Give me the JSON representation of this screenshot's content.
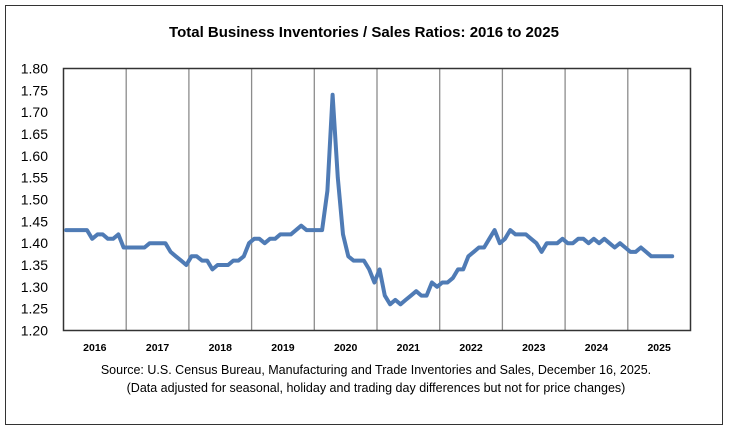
{
  "chart_data": {
    "type": "line",
    "title": "Total Business Inventories / Sales Ratios: 2016 to 2025",
    "xlabel": "",
    "ylabel": "",
    "ylim": [
      1.2,
      1.8
    ],
    "yticks": [
      "1.20",
      "1.25",
      "1.30",
      "1.35",
      "1.40",
      "1.45",
      "1.50",
      "1.55",
      "1.60",
      "1.65",
      "1.70",
      "1.75",
      "1.80"
    ],
    "xtick_labels": [
      "2016",
      "2017",
      "2018",
      "2019",
      "2020",
      "2021",
      "2022",
      "2023",
      "2024",
      "2025"
    ],
    "frequency": "monthly",
    "start": "2016-01",
    "grid": "vertical year separators",
    "line_color": "#4f7bb5",
    "series": [
      {
        "values": [
          1.43,
          1.43,
          1.43,
          1.43,
          1.43,
          1.41,
          1.42,
          1.42,
          1.41,
          1.41,
          1.42,
          1.39,
          1.39,
          1.39,
          1.39,
          1.39,
          1.4,
          1.4,
          1.4,
          1.4,
          1.38,
          1.37,
          1.36,
          1.35,
          1.37,
          1.37,
          1.36,
          1.36,
          1.34,
          1.35,
          1.35,
          1.35,
          1.36,
          1.36,
          1.37,
          1.4,
          1.41,
          1.41,
          1.4,
          1.41,
          1.41,
          1.42,
          1.42,
          1.42,
          1.43,
          1.44,
          1.43,
          1.43,
          1.43,
          1.43,
          1.52,
          1.74,
          1.55,
          1.42,
          1.37,
          1.36,
          1.36,
          1.36,
          1.34,
          1.31,
          1.34,
          1.28,
          1.26,
          1.27,
          1.26,
          1.27,
          1.28,
          1.29,
          1.28,
          1.28,
          1.31,
          1.3,
          1.31,
          1.31,
          1.32,
          1.34,
          1.34,
          1.37,
          1.38,
          1.39,
          1.39,
          1.41,
          1.43,
          1.4,
          1.41,
          1.43,
          1.42,
          1.42,
          1.42,
          1.41,
          1.4,
          1.38,
          1.4,
          1.4,
          1.4,
          1.41,
          1.4,
          1.4,
          1.41,
          1.41,
          1.4,
          1.41,
          1.4,
          1.41,
          1.4,
          1.39,
          1.4,
          1.39,
          1.38,
          1.38,
          1.39,
          1.38,
          1.37,
          1.37,
          1.37,
          1.37,
          1.37
        ]
      }
    ],
    "source_line1": "Source: U.S. Census Bureau, Manufacturing and Trade Inventories and Sales, December 16, 2025.",
    "source_line2": "(Data adjusted for seasonal, holiday and trading day differences but not for price changes)"
  }
}
